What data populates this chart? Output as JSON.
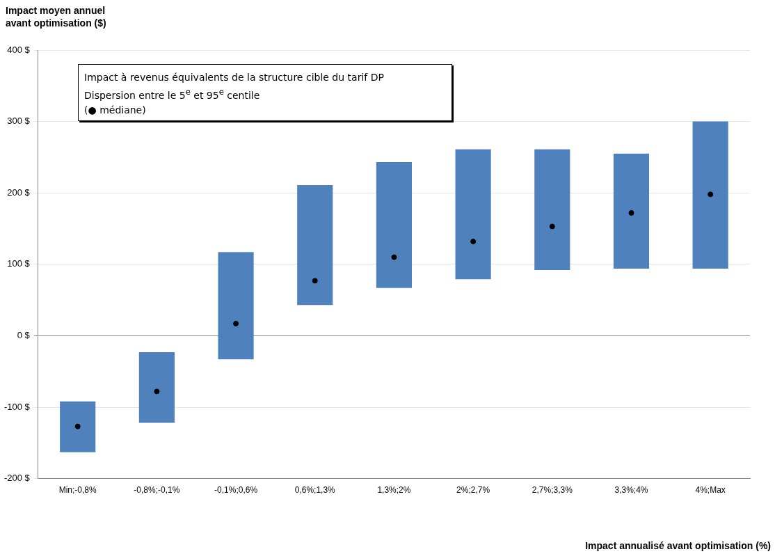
{
  "chart_data": {
    "type": "bar",
    "xlabel": "Impact annualisé avant optimisation (%)",
    "ylabel": "Impact moyen annuel avant optimisation ($)",
    "categories": [
      "Min;-0,8%",
      "-0,8%;-0,1%",
      "-0,1%;0,6%",
      "0,6%;1,3%",
      "1,3%;2%",
      "2%;2,7%",
      "2,7%;3,3%",
      "3,3%;4%",
      "4%;Max"
    ],
    "series": [
      {
        "color": "#4f81bd",
        "base": [
          -163,
          -122,
          -33,
          43,
          67,
          79,
          92,
          94,
          94
        ],
        "values": [
          71,
          99,
          150,
          168,
          176,
          182,
          169,
          161,
          206
        ]
      },
      {
        "type": "scatter",
        "color": "#000000",
        "marker": "circle",
        "x": [
          "Min;-0,8%",
          "-0,8%;-0,1%",
          "-0,1%;0,6%",
          "0,6%;1,3%",
          "1,3%;2%",
          "2%;2,7%",
          "2,7%;3,3%",
          "3,3%;4%",
          "4%;Max"
        ],
        "values": [
          -127,
          -78,
          17,
          77,
          110,
          132,
          153,
          172,
          198
        ]
      }
    ],
    "ylim": [
      -200,
      400
    ],
    "yticks": [
      {
        "value": -200,
        "label": "-200 $"
      },
      {
        "value": -100,
        "label": "-100 $"
      },
      {
        "value": 0,
        "label": "0 $"
      },
      {
        "value": 100,
        "label": "100 $"
      },
      {
        "value": 200,
        "label": "200 $"
      },
      {
        "value": 300,
        "label": "300 $"
      },
      {
        "value": 400,
        "label": "400 $"
      }
    ],
    "grid": "y",
    "legend": false,
    "annotations": [
      "Impact à revenus équivalents de la structure cible du tarif DP",
      "Dispersion entre le 5$^{e}$ et 95$^{e}$ centile",
      "(● médiane)"
    ]
  }
}
